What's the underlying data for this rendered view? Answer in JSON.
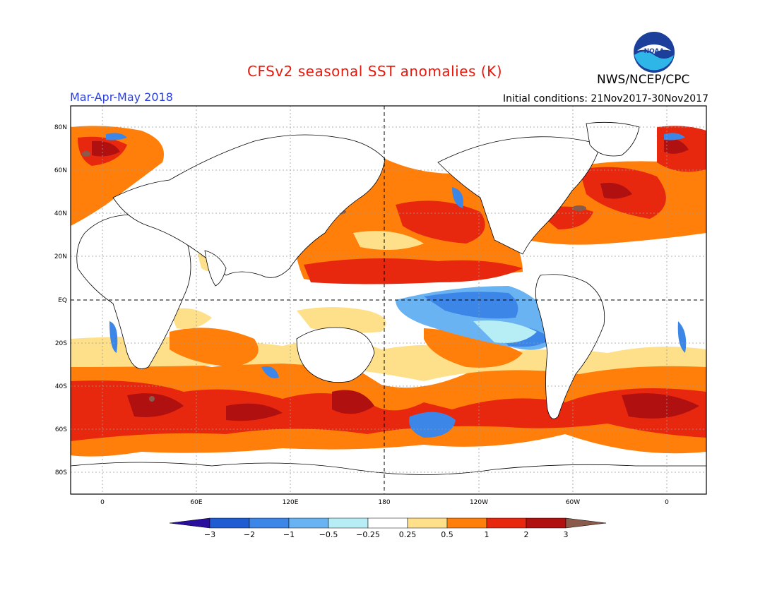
{
  "title": "CFSv2 seasonal SST anomalies (K)",
  "organization": "NWS/NCEP/CPC",
  "season": "Mar-Apr-May 2018",
  "initial_conditions": "Initial conditions: 21Nov2017-30Nov2017",
  "logo_text": "NOAA",
  "colors": {
    "title": "#e8180c",
    "season": "#2b3fe0",
    "frame": "#000000"
  },
  "lat_labels": [
    "80N",
    "60N",
    "40N",
    "20N",
    "EQ",
    "20S",
    "40S",
    "60S",
    "80S"
  ],
  "lon_labels": [
    "0",
    "60E",
    "120E",
    "180",
    "120W",
    "60W",
    "0"
  ],
  "colorbar": {
    "labels": [
      "-3",
      "-2",
      "-1",
      "-0.5",
      "-0.25",
      "0.25",
      "0.5",
      "1",
      "2",
      "3"
    ],
    "colors": [
      "#2a0f9e",
      "#1f5cd2",
      "#3c86e8",
      "#6ab3f2",
      "#b7eef5",
      "#ffffff",
      "#ffe08a",
      "#ff7f0a",
      "#e8280e",
      "#b01010",
      "#8a5a4a"
    ]
  }
}
